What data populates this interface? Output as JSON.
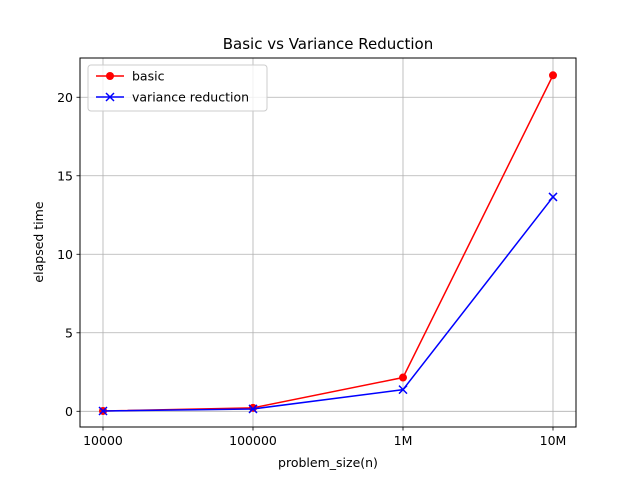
{
  "chart_data": {
    "type": "line",
    "title": "Basic vs Variance Reduction",
    "xlabel": "problem_size(n)",
    "ylabel": "elapsed time",
    "categories": [
      "10000",
      "100000",
      "1M",
      "10M"
    ],
    "ylim": [
      -1.0,
      22.5
    ],
    "yticks": [
      0,
      5,
      10,
      15,
      20
    ],
    "grid": true,
    "legend_position": "top-left",
    "series": [
      {
        "name": "basic",
        "values": [
          0.02,
          0.22,
          2.15,
          21.4
        ],
        "color": "#ff0000",
        "marker": "circle"
      },
      {
        "name": "variance reduction",
        "values": [
          0.02,
          0.15,
          1.38,
          13.65
        ],
        "color": "#0000ff",
        "marker": "x"
      }
    ]
  }
}
